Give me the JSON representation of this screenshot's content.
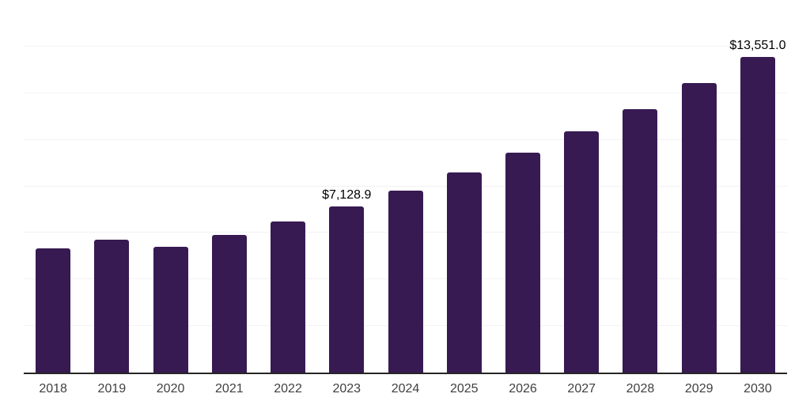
{
  "chart_data": {
    "type": "bar",
    "title": "",
    "xlabel": "",
    "ylabel": "",
    "categories": [
      "2018",
      "2019",
      "2020",
      "2021",
      "2022",
      "2023",
      "2024",
      "2025",
      "2026",
      "2027",
      "2028",
      "2029",
      "2030"
    ],
    "values": [
      5330,
      5715,
      5400,
      5900,
      6500,
      7128.9,
      7820,
      8595,
      9435,
      10350,
      11315,
      12440,
      13551.0
    ],
    "value_labels": {
      "2023": "$7,128.9",
      "2030": "$13,551.0"
    },
    "ylim": [
      0,
      16000
    ],
    "grid_step": 2000,
    "grid": "horizontal-only",
    "legend_position": "none",
    "y_tick_labels_visible": false,
    "colors": {
      "bar": "#371a52",
      "gridline": "#f2f2f2",
      "axis_line": "#262626",
      "tick_label": "#404040",
      "data_label": "#000000",
      "background": "#ffffff"
    }
  }
}
